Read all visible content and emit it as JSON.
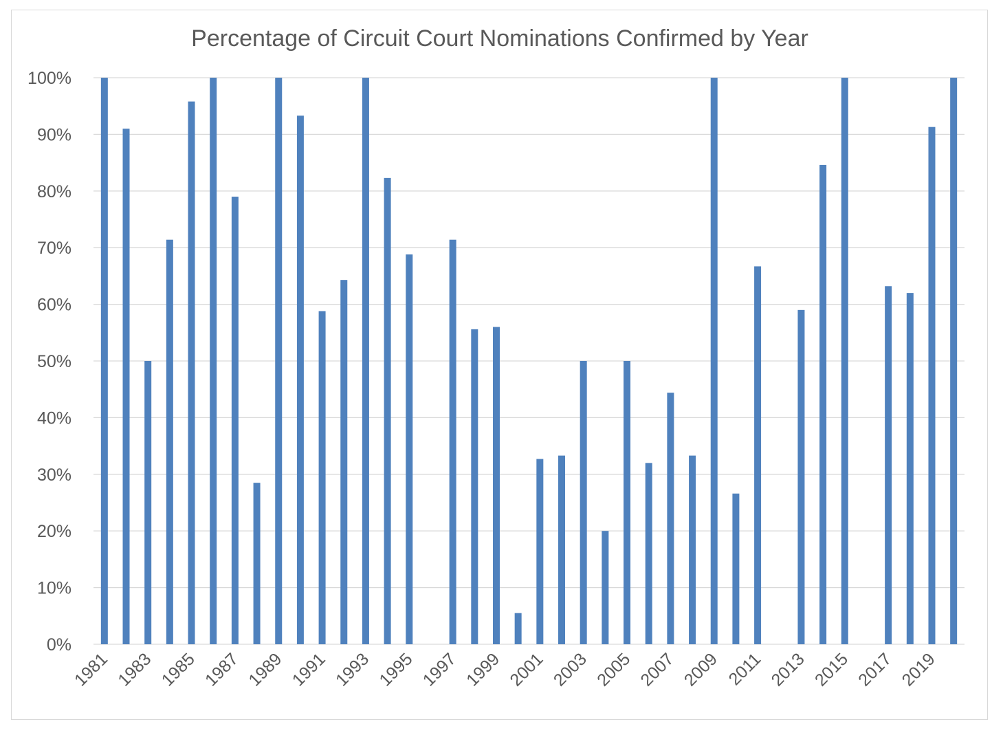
{
  "chart_data": {
    "type": "bar",
    "title": "Percentage of Circuit Court Nominations Confirmed by Year",
    "xlabel": "",
    "ylabel": "",
    "ylim": [
      0,
      100
    ],
    "y_ticks": [
      "0%",
      "10%",
      "20%",
      "30%",
      "40%",
      "50%",
      "60%",
      "70%",
      "80%",
      "90%",
      "100%"
    ],
    "x_tick_labels": [
      "1981",
      "1983",
      "1985",
      "1987",
      "1989",
      "1991",
      "1993",
      "1995",
      "1997",
      "1999",
      "2001",
      "2003",
      "2005",
      "2007",
      "2009",
      "2011",
      "2013",
      "2015",
      "2017",
      "2019"
    ],
    "grid": true,
    "legend": "none",
    "bar_color": "#4f81bd",
    "categories": [
      "1981",
      "1982",
      "1983",
      "1984",
      "1985",
      "1986",
      "1987",
      "1988",
      "1989",
      "1990",
      "1991",
      "1992",
      "1993",
      "1994",
      "1995",
      "1996",
      "1997",
      "1998",
      "1999",
      "2000",
      "2001",
      "2002",
      "2003",
      "2004",
      "2005",
      "2006",
      "2007",
      "2008",
      "2009",
      "2010",
      "2011",
      "2012",
      "2013",
      "2014",
      "2015",
      "2016",
      "2017",
      "2018",
      "2019",
      "2020"
    ],
    "values": [
      100,
      91,
      50,
      71.4,
      95.8,
      100,
      79,
      28.5,
      100,
      93.3,
      58.8,
      64.3,
      100,
      82.3,
      68.8,
      0,
      71.4,
      55.6,
      56,
      5.5,
      32.7,
      33.3,
      50,
      20,
      50,
      32,
      44.4,
      33.3,
      100,
      26.6,
      66.7,
      0,
      59,
      84.6,
      100,
      0,
      63.2,
      62,
      91.3,
      100
    ]
  }
}
